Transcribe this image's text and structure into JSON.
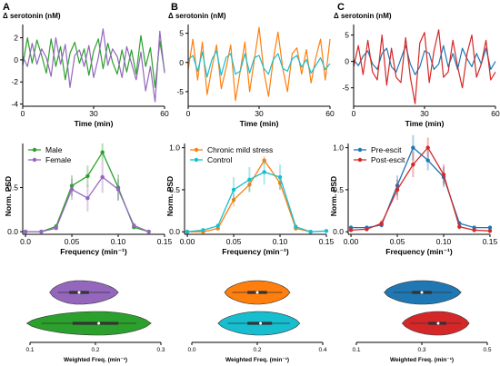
{
  "chart_data": [
    {
      "panel": "A",
      "type": "line",
      "ylabel": "Δ serotonin (nM)",
      "xlabel": "Time (min)",
      "xlim": [
        0,
        60
      ],
      "ylim": [
        -4.2,
        3.2
      ],
      "xticks": [
        0,
        30,
        60
      ],
      "yticks": [
        -4,
        -2,
        0,
        2
      ],
      "series": [
        {
          "color": "#2ca02c",
          "x": [
            0,
            2,
            4,
            6,
            8,
            10,
            12,
            14,
            16,
            18,
            20,
            22,
            24,
            26,
            28,
            30,
            32,
            34,
            36,
            38,
            40,
            42,
            44,
            46,
            48,
            50,
            52,
            54,
            56,
            58,
            60
          ],
          "values": [
            -0.5,
            2.0,
            -0.3,
            1.8,
            0.4,
            -1.2,
            1.9,
            -0.6,
            1.2,
            -1.8,
            0.6,
            1.6,
            -0.3,
            1.0,
            -1.4,
            0.8,
            1.9,
            -0.8,
            1.5,
            -0.2,
            -1.3,
            0.9,
            -1.1,
            0.9,
            -1.3,
            2.2,
            -0.6,
            1.1,
            -2.5,
            1.7,
            -1.0
          ]
        },
        {
          "color": "#9467bd",
          "x": [
            0,
            2,
            4,
            6,
            8,
            10,
            12,
            14,
            16,
            18,
            20,
            22,
            24,
            26,
            28,
            30,
            32,
            34,
            36,
            38,
            40,
            42,
            44,
            46,
            48,
            50,
            52,
            54,
            56,
            58,
            60
          ],
          "values": [
            0.3,
            -0.6,
            1.5,
            -0.4,
            1.0,
            0.2,
            -1.5,
            2.0,
            -0.4,
            1.4,
            -2.5,
            0.4,
            0.9,
            -0.6,
            1.3,
            -1.6,
            0.2,
            2.8,
            -0.5,
            1.0,
            0.3,
            -1.6,
            1.2,
            -0.3,
            -1.8,
            0.7,
            -2.8,
            -0.6,
            -3.8,
            2.6,
            -1.2
          ]
        }
      ]
    },
    {
      "panel": "B",
      "type": "line",
      "ylabel": "Δ serotonin (nM)",
      "xlabel": "Time (min)",
      "xlim": [
        0,
        60
      ],
      "ylim": [
        -7.5,
        6.5
      ],
      "xticks": [
        0,
        30,
        60
      ],
      "yticks": [
        -5,
        0,
        5
      ],
      "series": [
        {
          "color": "#ff7f0e",
          "x": [
            0,
            2,
            4,
            6,
            8,
            10,
            12,
            14,
            16,
            18,
            20,
            22,
            24,
            26,
            28,
            30,
            32,
            34,
            36,
            38,
            40,
            42,
            44,
            46,
            48,
            50,
            52,
            54,
            56,
            58,
            60
          ],
          "values": [
            -1.2,
            4.0,
            -3.0,
            3.5,
            -5.5,
            -1.0,
            3.0,
            -4.5,
            -1.0,
            3.0,
            -6.5,
            -1.5,
            3.5,
            -5.0,
            0.5,
            6.0,
            -1.5,
            -5.8,
            0.5,
            5.2,
            -1.0,
            -5.0,
            1.5,
            2.5,
            -2.0,
            2.2,
            -3.5,
            0.8,
            4.0,
            -3.0,
            4.0
          ]
        },
        {
          "color": "#17becf",
          "x": [
            0,
            2,
            4,
            6,
            8,
            10,
            12,
            14,
            16,
            18,
            20,
            22,
            24,
            26,
            28,
            30,
            32,
            34,
            36,
            38,
            40,
            42,
            44,
            46,
            48,
            50,
            52,
            54,
            56,
            58,
            60
          ],
          "values": [
            0.5,
            1.2,
            -1.5,
            1.8,
            -2.5,
            0.5,
            2.0,
            -2.2,
            0.8,
            1.5,
            -2.0,
            -1.5,
            1.5,
            -1.8,
            0.8,
            1.2,
            -1.0,
            -2.0,
            0.5,
            1.5,
            -1.0,
            -1.5,
            0.6,
            1.2,
            -0.8,
            0.5,
            -1.8,
            -0.5,
            0.8,
            -1.2,
            -0.2
          ]
        }
      ]
    },
    {
      "panel": "C",
      "type": "line",
      "ylabel": "Δ serotonin (nM)",
      "xlabel": "Time (min)",
      "xlim": [
        0,
        60
      ],
      "ylim": [
        -8.5,
        7
      ],
      "xticks": [
        0,
        30,
        60
      ],
      "yticks": [
        -5,
        0,
        5
      ],
      "series": [
        {
          "color": "#1f77b4",
          "x": [
            0,
            2,
            4,
            6,
            8,
            10,
            12,
            14,
            16,
            18,
            20,
            22,
            24,
            26,
            28,
            30,
            32,
            34,
            36,
            38,
            40,
            42,
            44,
            46,
            48,
            50,
            52,
            54,
            56,
            58,
            60
          ],
          "values": [
            0.3,
            -0.8,
            1.0,
            2.0,
            -0.5,
            -1.5,
            1.5,
            2.5,
            -1.0,
            -2.0,
            0.5,
            3.0,
            -0.5,
            -2.5,
            -1.0,
            2.0,
            1.5,
            -1.5,
            -0.5,
            3.0,
            -1.0,
            1.5,
            -1.5,
            2.5,
            0.5,
            -1.0,
            1.5,
            -0.5,
            2.5,
            -1.5,
            0.0
          ]
        },
        {
          "color": "#d62728",
          "x": [
            0,
            2,
            4,
            6,
            8,
            10,
            12,
            14,
            16,
            18,
            20,
            22,
            24,
            26,
            28,
            30,
            32,
            34,
            36,
            38,
            40,
            42,
            44,
            46,
            48,
            50,
            52,
            54,
            56,
            58,
            60
          ],
          "values": [
            -1.0,
            3.0,
            -2.5,
            4.0,
            -2.0,
            -3.5,
            5.0,
            -4.5,
            2.5,
            -3.0,
            -4.0,
            4.5,
            -3.0,
            -8.0,
            3.5,
            5.5,
            -4.0,
            2.0,
            6.0,
            -3.0,
            -2.0,
            4.0,
            -1.0,
            -5.0,
            1.5,
            5.0,
            -3.0,
            -0.5,
            4.0,
            -3.5,
            -2.0
          ]
        }
      ]
    },
    {
      "panel": "A-psd",
      "type": "line",
      "ylabel": "Norm. PSD",
      "xlabel": "Frequency (min⁻¹)",
      "xlim": [
        -0.003,
        0.15
      ],
      "ylim": [
        -0.03,
        1.0
      ],
      "xticks": [
        0.0,
        0.05,
        0.1,
        0.15
      ],
      "xticklabels": [
        "0.0",
        "0.05",
        "0.10",
        "0.15"
      ],
      "yticks": [
        0.0,
        0.5
      ],
      "yticklabels": [
        "0.0",
        "0.5"
      ],
      "legend": [
        "Male",
        "Female"
      ],
      "legend_position": "top-left",
      "series": [
        {
          "name": "Male",
          "color": "#2ca02c",
          "x": [
            0.0,
            0.017,
            0.033,
            0.05,
            0.067,
            0.083,
            0.1,
            0.117,
            0.133
          ],
          "values": [
            0.0,
            0.0,
            0.06,
            0.52,
            0.63,
            0.9,
            0.5,
            0.05,
            0.0
          ],
          "err": [
            0,
            0,
            0.02,
            0.12,
            0.12,
            0.1,
            0.15,
            0.02,
            0
          ]
        },
        {
          "name": "Female",
          "color": "#9467bd",
          "x": [
            0.0,
            0.017,
            0.033,
            0.05,
            0.067,
            0.083,
            0.1,
            0.117,
            0.133
          ],
          "values": [
            0.0,
            0.0,
            0.04,
            0.48,
            0.38,
            0.62,
            0.48,
            0.07,
            0.0
          ],
          "err": [
            0,
            0,
            0.02,
            0.12,
            0.15,
            0.18,
            0.12,
            0.03,
            0
          ]
        }
      ]
    },
    {
      "panel": "B-psd",
      "type": "line",
      "ylabel": "Norm. PSD",
      "xlabel": "Frequency (min⁻¹)",
      "xlim": [
        -0.003,
        0.15
      ],
      "ylim": [
        -0.03,
        1.05
      ],
      "xticks": [
        0.0,
        0.05,
        0.1,
        0.15
      ],
      "xticklabels": [
        "0.00",
        "0.05",
        "0.10",
        "0.15"
      ],
      "yticks": [
        0.0,
        0.5,
        1.0
      ],
      "yticklabels": [
        "0.0",
        "0.5",
        "1.0"
      ],
      "legend": [
        "Chronic mild stress",
        "Control"
      ],
      "legend_position": "top-left",
      "series": [
        {
          "name": "Chronic mild stress",
          "color": "#ff7f0e",
          "x": [
            0.0,
            0.017,
            0.033,
            0.05,
            0.067,
            0.083,
            0.1,
            0.117,
            0.133
          ],
          "values": [
            0.0,
            0.0,
            0.04,
            0.38,
            0.56,
            0.85,
            0.58,
            0.04,
            0.0
          ],
          "err": [
            0,
            0,
            0.02,
            0.08,
            0.08,
            0.05,
            0.08,
            0.02,
            0
          ]
        },
        {
          "name": "Control",
          "color": "#17becf",
          "x": [
            0.0,
            0.017,
            0.033,
            0.05,
            0.067,
            0.083,
            0.1,
            0.117,
            0.133,
            0.15
          ],
          "values": [
            0.0,
            0.02,
            0.07,
            0.5,
            0.62,
            0.71,
            0.65,
            0.06,
            0.0,
            0.01
          ],
          "err": [
            0,
            0,
            0.03,
            0.15,
            0.15,
            0.15,
            0.15,
            0.03,
            0,
            0
          ]
        }
      ]
    },
    {
      "panel": "C-psd",
      "type": "line",
      "ylabel": "Norm. PSD",
      "xlabel": "Frequency (min⁻¹)",
      "xlim": [
        -0.003,
        0.15
      ],
      "ylim": [
        -0.03,
        1.05
      ],
      "xticks": [
        0.0,
        0.05,
        0.1,
        0.15
      ],
      "xticklabels": [
        "0.00",
        "0.05",
        "0.10",
        "0.15"
      ],
      "yticks": [
        0.0,
        0.5,
        1.0
      ],
      "yticklabels": [
        "0.0",
        "0.5",
        "1.0"
      ],
      "legend": [
        "Pre-escit",
        "Post-escit"
      ],
      "legend_position": "top-left",
      "series": [
        {
          "name": "Pre-escit",
          "color": "#1f77b4",
          "x": [
            0.0,
            0.017,
            0.033,
            0.05,
            0.067,
            0.083,
            0.1,
            0.117,
            0.133,
            0.15
          ],
          "values": [
            0.05,
            0.05,
            0.08,
            0.55,
            1.0,
            0.85,
            0.65,
            0.1,
            0.05,
            0.05
          ],
          "err": [
            0.02,
            0.02,
            0.03,
            0.12,
            0.15,
            0.12,
            0.12,
            0.03,
            0.02,
            0.02
          ]
        },
        {
          "name": "Post-escit",
          "color": "#d62728",
          "x": [
            0.0,
            0.017,
            0.033,
            0.05,
            0.067,
            0.083,
            0.1,
            0.117,
            0.133,
            0.15
          ],
          "values": [
            0.02,
            0.03,
            0.1,
            0.5,
            0.8,
            1.0,
            0.68,
            0.06,
            0.02,
            0.01
          ],
          "err": [
            0.01,
            0.02,
            0.04,
            0.12,
            0.15,
            0.12,
            0.12,
            0.03,
            0.01,
            0.01
          ]
        }
      ]
    },
    {
      "panel": "A-violin",
      "type": "violin",
      "xlabel": "Weighted Freq. (min⁻¹)",
      "xlim": [
        0.1,
        0.3
      ],
      "xticks": [
        0.1,
        0.2,
        0.3
      ],
      "xticklabels": [
        "0.1",
        "0.2",
        "0.3"
      ],
      "violins": [
        {
          "color": "#9467bd",
          "min": 0.13,
          "max": 0.235,
          "median": 0.175,
          "q1": 0.16,
          "q3": 0.19
        },
        {
          "color": "#2ca02c",
          "min": 0.095,
          "max": 0.285,
          "median": 0.205,
          "q1": 0.165,
          "q3": 0.235
        }
      ]
    },
    {
      "panel": "B-violin",
      "type": "violin",
      "xlabel": "Weighted Freq. (min⁻¹)",
      "xlim": [
        0.0,
        0.4
      ],
      "xticks": [
        0.0,
        0.2,
        0.4
      ],
      "xticklabels": [
        "0.0",
        "0.2",
        "0.4"
      ],
      "violins": [
        {
          "color": "#ff7f0e",
          "min": 0.1,
          "max": 0.3,
          "median": 0.2,
          "q1": 0.17,
          "q3": 0.23
        },
        {
          "color": "#17becf",
          "min": 0.08,
          "max": 0.33,
          "median": 0.21,
          "q1": 0.17,
          "q3": 0.245
        }
      ]
    },
    {
      "panel": "C-violin",
      "type": "violin",
      "xlabel": "Weighted Freq. (min⁻¹)",
      "xlim": [
        0.1,
        0.5
      ],
      "xticks": [
        0.1,
        0.3,
        0.5
      ],
      "xticklabels": [
        "0.1",
        "0.3",
        "0.5"
      ],
      "violins": [
        {
          "color": "#1f77b4",
          "min": 0.185,
          "max": 0.42,
          "median": 0.3,
          "q1": 0.27,
          "q3": 0.33
        },
        {
          "color": "#d62728",
          "min": 0.24,
          "max": 0.445,
          "median": 0.35,
          "q1": 0.32,
          "q3": 0.375
        }
      ]
    }
  ]
}
